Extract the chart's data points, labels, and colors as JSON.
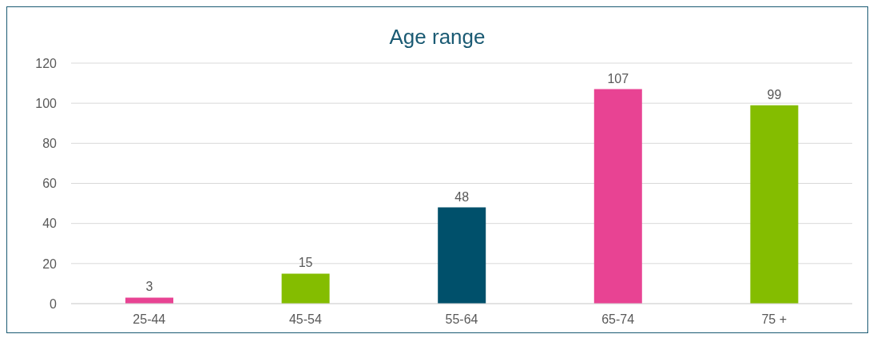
{
  "chart_data": {
    "type": "bar",
    "title": "Age range",
    "categories": [
      "25-44",
      "45-54",
      "55-64",
      "65-74",
      "75 +"
    ],
    "values": [
      3,
      15,
      48,
      107,
      99
    ],
    "colors": [
      "#e84393",
      "#84bd00",
      "#00506b",
      "#e84393",
      "#84bd00"
    ],
    "ylim": [
      0,
      120
    ],
    "yticks": [
      0,
      20,
      40,
      60,
      80,
      100,
      120
    ],
    "grid": "y",
    "data_labels": true
  }
}
